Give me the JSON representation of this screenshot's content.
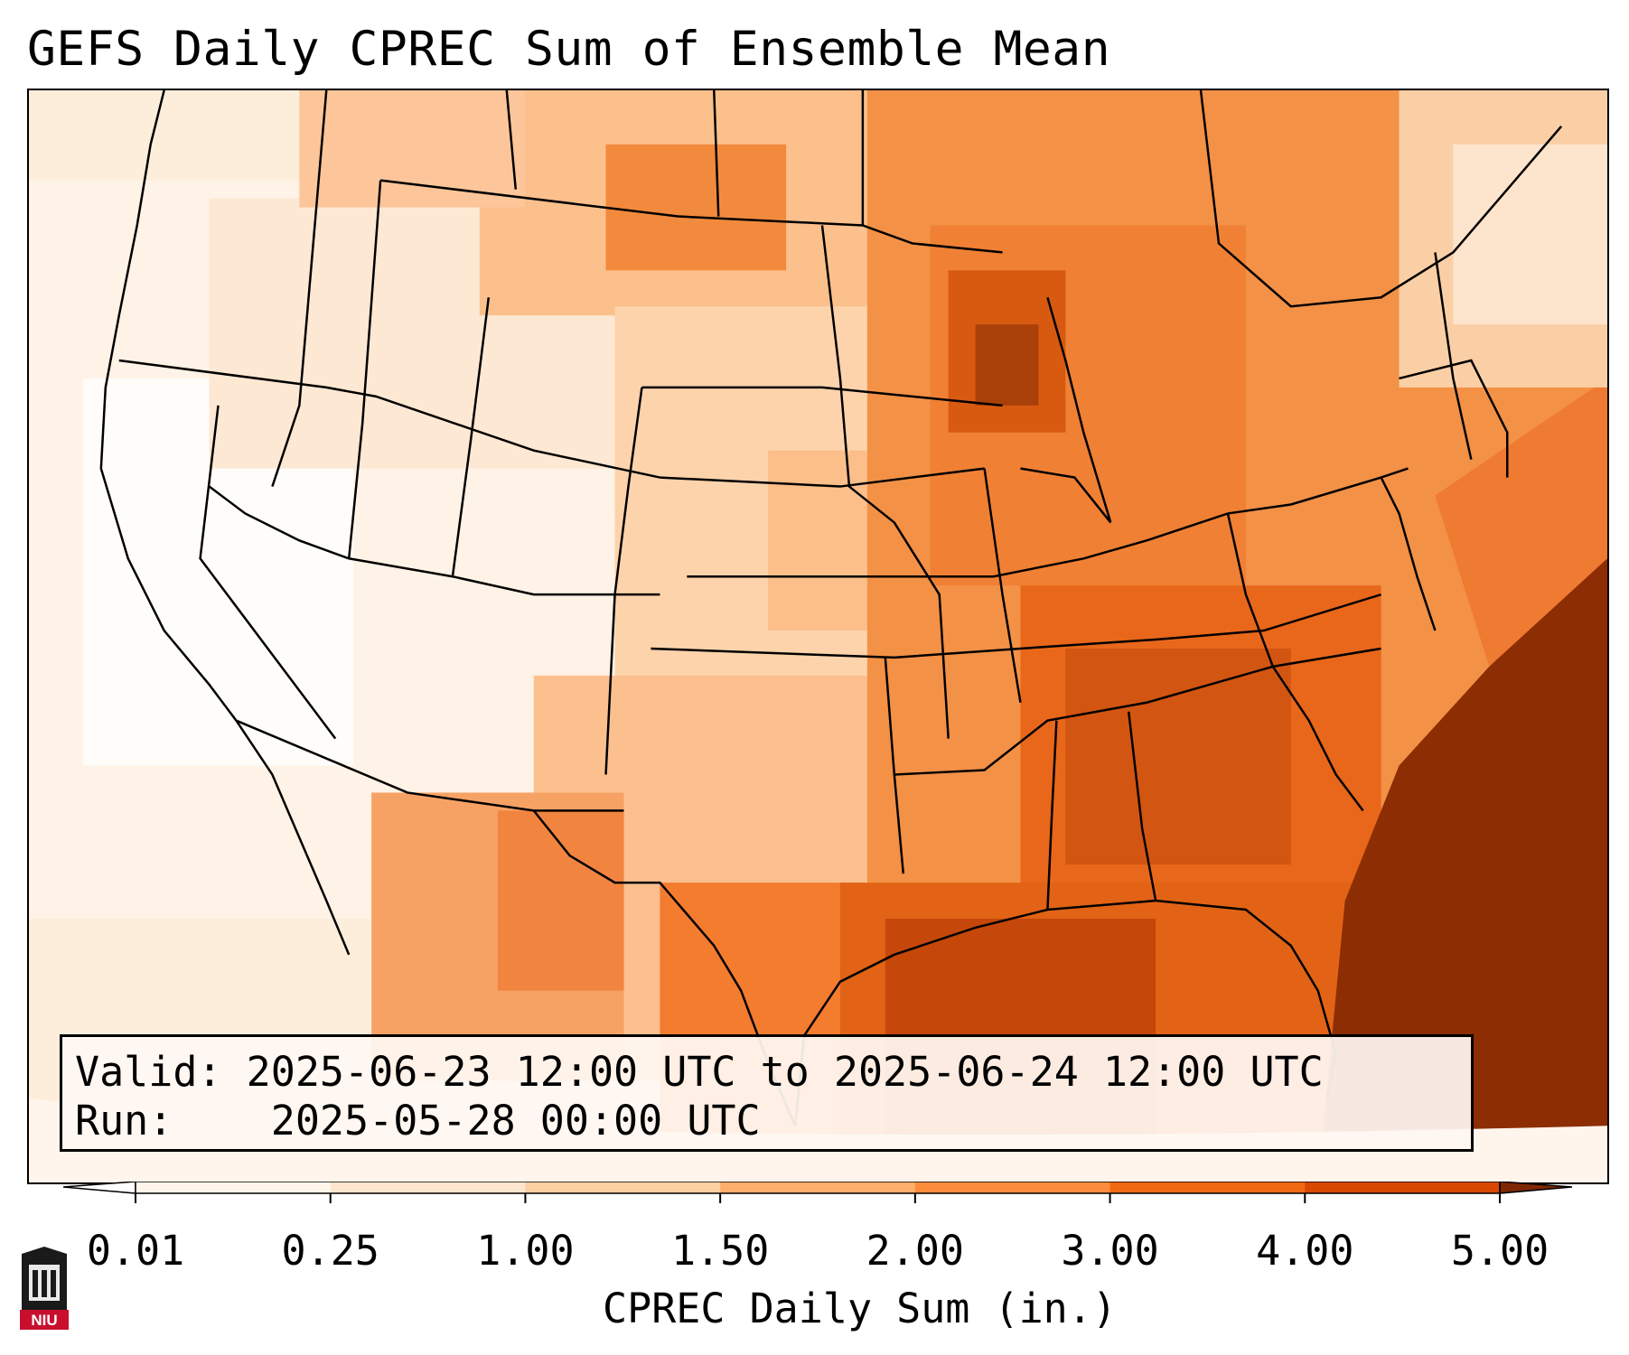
{
  "title": "GEFS Daily CPREC Sum of Ensemble Mean",
  "info": {
    "valid_label": "Valid:",
    "valid_value": "2025-06-23 12:00 UTC to 2025-06-24 12:00 UTC",
    "run_label": "Run:",
    "run_value": "2025-05-28 00:00 UTC"
  },
  "colorbar": {
    "label": "CPREC Daily Sum (in.)",
    "ticks": [
      "0.01",
      "0.25",
      "1.00",
      "1.50",
      "2.00",
      "3.00",
      "4.00",
      "5.00"
    ],
    "colors": [
      "#fff5eb",
      "#fee6ce",
      "#fdd0a2",
      "#fdae6b",
      "#fd8d3c",
      "#f16913",
      "#d94801",
      "#8c2d04"
    ],
    "under_color": "#ffffff",
    "over_color": "#7f2704"
  },
  "map": {
    "region": "CONUS",
    "overlay_color_ramp": [
      "#fff5eb",
      "#fee6ce",
      "#fdd0a2",
      "#fdae6b",
      "#fd8d3c",
      "#f16913",
      "#d94801",
      "#8c2d04"
    ]
  },
  "logo": {
    "text": "NIU",
    "icon": "niu-logo-icon",
    "color": "#c8102e"
  }
}
